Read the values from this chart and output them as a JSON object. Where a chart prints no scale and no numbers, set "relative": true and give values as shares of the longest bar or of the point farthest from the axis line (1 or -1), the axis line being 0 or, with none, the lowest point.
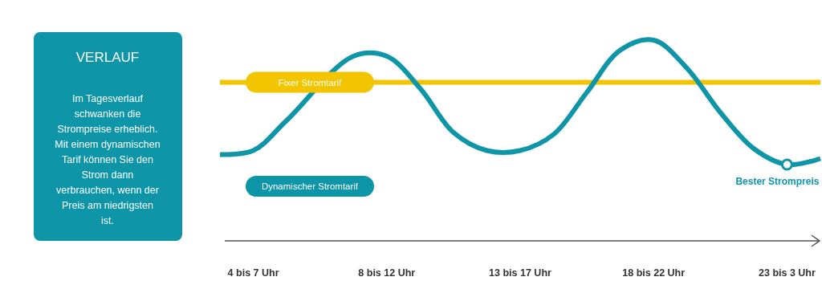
{
  "chart_data": {
    "type": "line",
    "title": "VERLAUF",
    "subtitle": "Im Tagesverlauf schwanken die Strompreise erheblich. Mit einem dynamischen Tarif können Sie den Strom dann verbrauchen, wenn der Preis am niedrigsten ist.",
    "relative": true,
    "categories": [
      null,
      "4 bis 7 Uhr",
      null,
      null,
      null,
      "8 bis 12 Uhr",
      null,
      null,
      null,
      "13 bis 17 Uhr",
      null,
      null,
      null,
      "18 bis 22 Uhr",
      null,
      null,
      null,
      "23 bis 3 Uhr",
      null
    ],
    "series": [
      {
        "name": "Fixer Stromtarif",
        "color": "#f2c500",
        "values": [
          0.79,
          null,
          null,
          null,
          null,
          0.79,
          0.79,
          0.79,
          0.79,
          0.79,
          0.79,
          0.79,
          0.79,
          0.79,
          0.79,
          0.79,
          0.79,
          0.79,
          0.79
        ]
      },
      {
        "name": "Dynamischer Stromtarif",
        "color": "#0e95a8",
        "values": [
          0.43,
          0.45,
          0.6,
          null,
          0.92,
          0.92,
          0.76,
          0.54,
          0.45,
          0.45,
          0.53,
          0.74,
          0.95,
          1,
          0.86,
          0.64,
          0.46,
          0.38,
          0.41
        ]
      }
    ],
    "annotations": [
      {
        "text": "Bester Strompreis",
        "x": "23 bis 3 Uhr",
        "y": 0.38
      }
    ],
    "legend": false,
    "marker": "none",
    "line_style": "solid"
  }
}
